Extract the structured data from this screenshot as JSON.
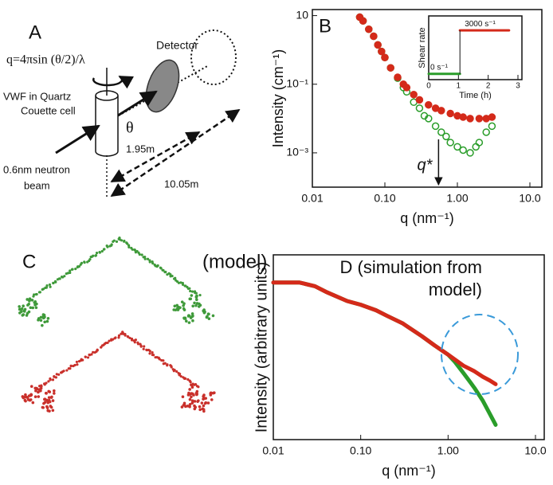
{
  "panel_a": {
    "label": "A",
    "formula": "q=4πsin (θ/2)/λ",
    "detector": "Detector",
    "sample_lines": [
      "VWF in Quartz",
      "Couette cell"
    ],
    "theta": "θ",
    "distance_short": "1.95m",
    "distance_long": "10.05m",
    "beam_lines": [
      "0.6nm neutron",
      "beam"
    ]
  },
  "panel_c": {
    "label": "C",
    "caption": "(model)"
  },
  "chart_data": [
    {
      "type": "scatter",
      "label": "B",
      "ylabel": "Intensity (cm⁻¹)",
      "xlabel": "q (nm⁻¹)",
      "xscale": "log",
      "yscale": "log",
      "xlim": [
        0.01,
        10
      ],
      "ylim": [
        0.0001,
        15
      ],
      "xticks": [
        0.01,
        {
          "value": 0.1,
          "label": "0.10"
        },
        {
          "value": 1,
          "label": "1.00"
        },
        {
          "value": 10,
          "label": "10.0"
        }
      ],
      "yticks": [
        10,
        {
          "value": 0.1,
          "label": "10⁻¹"
        },
        {
          "value": 0.001,
          "label": "10⁻³"
        }
      ],
      "annotation": {
        "text": "q*",
        "x": 0.55
      },
      "series": [
        {
          "color": "#2a9d2a",
          "marker": "open-circle",
          "x": [
            0.045,
            0.05,
            0.06,
            0.07,
            0.08,
            0.09,
            0.1,
            0.12,
            0.15,
            0.18,
            0.2,
            0.25,
            0.3,
            0.35,
            0.4,
            0.5,
            0.6,
            0.7,
            0.8,
            1.0,
            1.2,
            1.5,
            1.8,
            2.0,
            2.5,
            3.0
          ],
          "values": [
            9,
            7,
            4,
            2.5,
            1.4,
            0.9,
            0.6,
            0.3,
            0.15,
            0.08,
            0.06,
            0.03,
            0.02,
            0.012,
            0.01,
            0.006,
            0.004,
            0.003,
            0.002,
            0.0015,
            0.0012,
            0.001,
            0.0015,
            0.002,
            0.004,
            0.006
          ]
        },
        {
          "color": "#d42a1a",
          "marker": "filled-circle",
          "x": [
            0.045,
            0.05,
            0.06,
            0.07,
            0.08,
            0.09,
            0.1,
            0.12,
            0.15,
            0.18,
            0.2,
            0.25,
            0.3,
            0.4,
            0.5,
            0.6,
            0.8,
            1.0,
            1.2,
            1.5,
            2.0,
            2.5,
            3.0
          ],
          "values": [
            9,
            7,
            4,
            2.5,
            1.4,
            0.9,
            0.6,
            0.3,
            0.16,
            0.1,
            0.08,
            0.05,
            0.035,
            0.025,
            0.02,
            0.017,
            0.014,
            0.012,
            0.011,
            0.01,
            0.01,
            0.01,
            0.011
          ]
        }
      ]
    },
    {
      "type": "line",
      "ylabel": "Shear rate",
      "xlabel": "Time (h)",
      "xlim": [
        0,
        3
      ],
      "xticks": [
        0,
        1,
        2,
        3
      ],
      "ylim": [
        -400,
        4000
      ],
      "series": [
        {
          "name": "0 s⁻¹",
          "color": "#2a9d2a",
          "x": [
            0,
            1.05
          ],
          "values": [
            0,
            0
          ]
        },
        {
          "name": "3000 s⁻¹",
          "color": "#d42a1a",
          "x": [
            1.05,
            2.7
          ],
          "values": [
            3000,
            3000
          ]
        }
      ]
    },
    {
      "type": "line",
      "title": "D (simulation from model)",
      "ylabel": "Intensity (arbitrary units)",
      "xlabel": "q (nm⁻¹)",
      "xscale": "log",
      "xlim": [
        0.01,
        10
      ],
      "ylim": [
        0,
        1
      ],
      "xticks": [
        0.01,
        {
          "value": 0.1,
          "label": "0.10"
        },
        {
          "value": 1,
          "label": "1.00"
        },
        {
          "value": 10,
          "label": "10.0"
        }
      ],
      "series": [
        {
          "color": "#2a9d2a",
          "x": [
            0.01,
            0.015,
            0.02,
            0.03,
            0.04,
            0.05,
            0.07,
            0.1,
            0.15,
            0.2,
            0.3,
            0.5,
            0.7,
            1.0,
            1.2,
            1.5,
            1.8,
            2.0,
            2.5,
            3.0,
            3.5
          ],
          "values": [
            0.85,
            0.85,
            0.85,
            0.83,
            0.8,
            0.78,
            0.75,
            0.73,
            0.7,
            0.67,
            0.63,
            0.56,
            0.51,
            0.46,
            0.42,
            0.36,
            0.31,
            0.28,
            0.21,
            0.14,
            0.08
          ]
        },
        {
          "color": "#d42a1a",
          "x": [
            0.01,
            0.015,
            0.02,
            0.03,
            0.04,
            0.05,
            0.07,
            0.1,
            0.15,
            0.2,
            0.3,
            0.5,
            0.7,
            1.0,
            1.5,
            2.0,
            2.5,
            3.0,
            3.5
          ],
          "values": [
            0.85,
            0.85,
            0.85,
            0.83,
            0.8,
            0.78,
            0.75,
            0.73,
            0.7,
            0.67,
            0.63,
            0.56,
            0.51,
            0.46,
            0.4,
            0.37,
            0.34,
            0.32,
            0.3
          ]
        }
      ]
    }
  ]
}
